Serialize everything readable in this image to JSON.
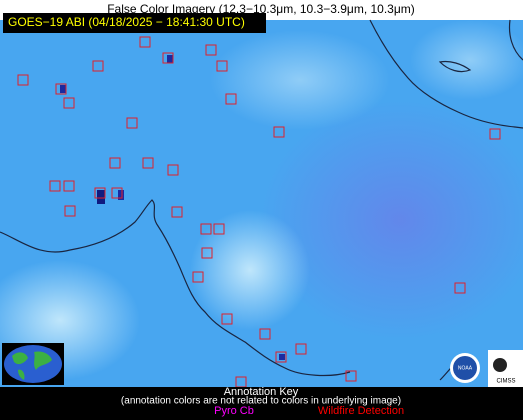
{
  "title": "False Color Imagery (12.3−10.3μm, 10.3−3.9μm, 10.3μm)",
  "image_label": "GOES−19 ABI (04/18/2025 − 18:41:30 UTC)",
  "annotation_key": {
    "title": "Annotation Key",
    "note": "(annotation colors are not related to colors in underlying image)",
    "items": [
      {
        "label": "Pyro Cb",
        "color": "#ff00ff"
      },
      {
        "label": "Wildfire Detection",
        "color": "#ff0000"
      }
    ]
  },
  "logos": {
    "noaa": "NOAA",
    "cimss": "CIMSS"
  }
}
